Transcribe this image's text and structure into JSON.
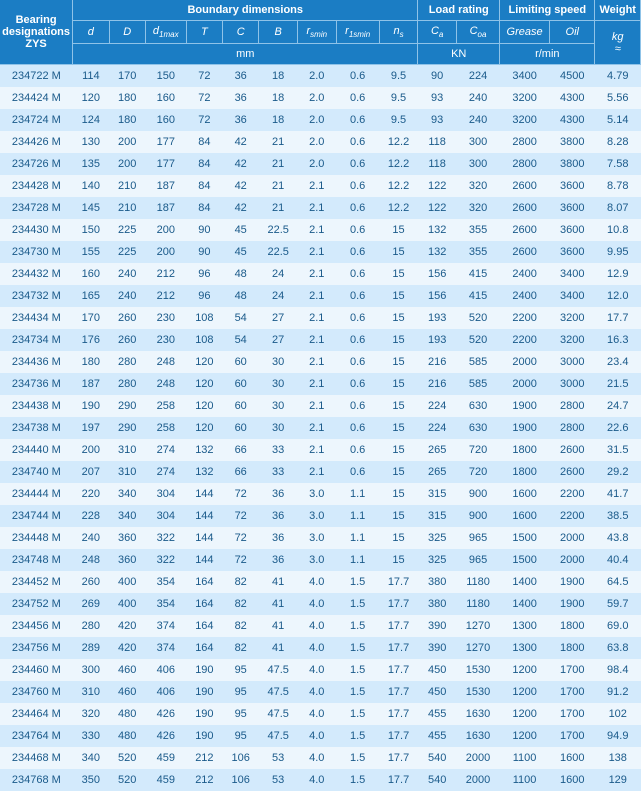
{
  "headers": {
    "group_bearing": "Bearing designations ZYS",
    "group_boundary": "Boundary dimensions",
    "group_load": "Load rating",
    "group_limit": "Limiting speed",
    "group_weight": "Weight",
    "d": "d",
    "D": "D",
    "d1max": "d₁max",
    "T": "T",
    "C": "C",
    "B": "B",
    "rsmin": "rsmin",
    "r1smin": "r1smin",
    "ns": "ns",
    "Ca": "Ca",
    "Coa": "Coa",
    "grease": "Grease",
    "oil": "Oil",
    "kg": "kg ≈",
    "mm": "mm",
    "KN": "KN",
    "rmin": "r/min"
  },
  "rows": [
    {
      "desig": "234722 M",
      "d": "114",
      "D": "170",
      "d1": "150",
      "T": "72",
      "C": "36",
      "B": "18",
      "rs": "2.0",
      "r1": "0.6",
      "ns": "9.5",
      "ca": "90",
      "coa": "224",
      "gr": "3400",
      "oil": "4500",
      "wt": "4.79"
    },
    {
      "desig": "234424 M",
      "d": "120",
      "D": "180",
      "d1": "160",
      "T": "72",
      "C": "36",
      "B": "18",
      "rs": "2.0",
      "r1": "0.6",
      "ns": "9.5",
      "ca": "93",
      "coa": "240",
      "gr": "3200",
      "oil": "4300",
      "wt": "5.56"
    },
    {
      "desig": "234724 M",
      "d": "124",
      "D": "180",
      "d1": "160",
      "T": "72",
      "C": "36",
      "B": "18",
      "rs": "2.0",
      "r1": "0.6",
      "ns": "9.5",
      "ca": "93",
      "coa": "240",
      "gr": "3200",
      "oil": "4300",
      "wt": "5.14"
    },
    {
      "desig": "234426 M",
      "d": "130",
      "D": "200",
      "d1": "177",
      "T": "84",
      "C": "42",
      "B": "21",
      "rs": "2.0",
      "r1": "0.6",
      "ns": "12.2",
      "ca": "118",
      "coa": "300",
      "gr": "2800",
      "oil": "3800",
      "wt": "8.28"
    },
    {
      "desig": "234726 M",
      "d": "135",
      "D": "200",
      "d1": "177",
      "T": "84",
      "C": "42",
      "B": "21",
      "rs": "2.0",
      "r1": "0.6",
      "ns": "12.2",
      "ca": "118",
      "coa": "300",
      "gr": "2800",
      "oil": "3800",
      "wt": "7.58"
    },
    {
      "desig": "234428 M",
      "d": "140",
      "D": "210",
      "d1": "187",
      "T": "84",
      "C": "42",
      "B": "21",
      "rs": "2.1",
      "r1": "0.6",
      "ns": "12.2",
      "ca": "122",
      "coa": "320",
      "gr": "2600",
      "oil": "3600",
      "wt": "8.78"
    },
    {
      "desig": "234728 M",
      "d": "145",
      "D": "210",
      "d1": "187",
      "T": "84",
      "C": "42",
      "B": "21",
      "rs": "2.1",
      "r1": "0.6",
      "ns": "12.2",
      "ca": "122",
      "coa": "320",
      "gr": "2600",
      "oil": "3600",
      "wt": "8.07"
    },
    {
      "desig": "234430 M",
      "d": "150",
      "D": "225",
      "d1": "200",
      "T": "90",
      "C": "45",
      "B": "22.5",
      "rs": "2.1",
      "r1": "0.6",
      "ns": "15",
      "ca": "132",
      "coa": "355",
      "gr": "2600",
      "oil": "3600",
      "wt": "10.8"
    },
    {
      "desig": "234730 M",
      "d": "155",
      "D": "225",
      "d1": "200",
      "T": "90",
      "C": "45",
      "B": "22.5",
      "rs": "2.1",
      "r1": "0.6",
      "ns": "15",
      "ca": "132",
      "coa": "355",
      "gr": "2600",
      "oil": "3600",
      "wt": "9.95"
    },
    {
      "desig": "234432 M",
      "d": "160",
      "D": "240",
      "d1": "212",
      "T": "96",
      "C": "48",
      "B": "24",
      "rs": "2.1",
      "r1": "0.6",
      "ns": "15",
      "ca": "156",
      "coa": "415",
      "gr": "2400",
      "oil": "3400",
      "wt": "12.9"
    },
    {
      "desig": "234732 M",
      "d": "165",
      "D": "240",
      "d1": "212",
      "T": "96",
      "C": "48",
      "B": "24",
      "rs": "2.1",
      "r1": "0.6",
      "ns": "15",
      "ca": "156",
      "coa": "415",
      "gr": "2400",
      "oil": "3400",
      "wt": "12.0"
    },
    {
      "desig": "234434 M",
      "d": "170",
      "D": "260",
      "d1": "230",
      "T": "108",
      "C": "54",
      "B": "27",
      "rs": "2.1",
      "r1": "0.6",
      "ns": "15",
      "ca": "193",
      "coa": "520",
      "gr": "2200",
      "oil": "3200",
      "wt": "17.7"
    },
    {
      "desig": "234734 M",
      "d": "176",
      "D": "260",
      "d1": "230",
      "T": "108",
      "C": "54",
      "B": "27",
      "rs": "2.1",
      "r1": "0.6",
      "ns": "15",
      "ca": "193",
      "coa": "520",
      "gr": "2200",
      "oil": "3200",
      "wt": "16.3"
    },
    {
      "desig": "234436 M",
      "d": "180",
      "D": "280",
      "d1": "248",
      "T": "120",
      "C": "60",
      "B": "30",
      "rs": "2.1",
      "r1": "0.6",
      "ns": "15",
      "ca": "216",
      "coa": "585",
      "gr": "2000",
      "oil": "3000",
      "wt": "23.4"
    },
    {
      "desig": "234736 M",
      "d": "187",
      "D": "280",
      "d1": "248",
      "T": "120",
      "C": "60",
      "B": "30",
      "rs": "2.1",
      "r1": "0.6",
      "ns": "15",
      "ca": "216",
      "coa": "585",
      "gr": "2000",
      "oil": "3000",
      "wt": "21.5"
    },
    {
      "desig": "234438 M",
      "d": "190",
      "D": "290",
      "d1": "258",
      "T": "120",
      "C": "60",
      "B": "30",
      "rs": "2.1",
      "r1": "0.6",
      "ns": "15",
      "ca": "224",
      "coa": "630",
      "gr": "1900",
      "oil": "2800",
      "wt": "24.7"
    },
    {
      "desig": "234738 M",
      "d": "197",
      "D": "290",
      "d1": "258",
      "T": "120",
      "C": "60",
      "B": "30",
      "rs": "2.1",
      "r1": "0.6",
      "ns": "15",
      "ca": "224",
      "coa": "630",
      "gr": "1900",
      "oil": "2800",
      "wt": "22.6"
    },
    {
      "desig": "234440 M",
      "d": "200",
      "D": "310",
      "d1": "274",
      "T": "132",
      "C": "66",
      "B": "33",
      "rs": "2.1",
      "r1": "0.6",
      "ns": "15",
      "ca": "265",
      "coa": "720",
      "gr": "1800",
      "oil": "2600",
      "wt": "31.5"
    },
    {
      "desig": "234740 M",
      "d": "207",
      "D": "310",
      "d1": "274",
      "T": "132",
      "C": "66",
      "B": "33",
      "rs": "2.1",
      "r1": "0.6",
      "ns": "15",
      "ca": "265",
      "coa": "720",
      "gr": "1800",
      "oil": "2600",
      "wt": "29.2"
    },
    {
      "desig": "234444 M",
      "d": "220",
      "D": "340",
      "d1": "304",
      "T": "144",
      "C": "72",
      "B": "36",
      "rs": "3.0",
      "r1": "1.1",
      "ns": "15",
      "ca": "315",
      "coa": "900",
      "gr": "1600",
      "oil": "2200",
      "wt": "41.7"
    },
    {
      "desig": "234744 M",
      "d": "228",
      "D": "340",
      "d1": "304",
      "T": "144",
      "C": "72",
      "B": "36",
      "rs": "3.0",
      "r1": "1.1",
      "ns": "15",
      "ca": "315",
      "coa": "900",
      "gr": "1600",
      "oil": "2200",
      "wt": "38.5"
    },
    {
      "desig": "234448 M",
      "d": "240",
      "D": "360",
      "d1": "322",
      "T": "144",
      "C": "72",
      "B": "36",
      "rs": "3.0",
      "r1": "1.1",
      "ns": "15",
      "ca": "325",
      "coa": "965",
      "gr": "1500",
      "oil": "2000",
      "wt": "43.8"
    },
    {
      "desig": "234748 M",
      "d": "248",
      "D": "360",
      "d1": "322",
      "T": "144",
      "C": "72",
      "B": "36",
      "rs": "3.0",
      "r1": "1.1",
      "ns": "15",
      "ca": "325",
      "coa": "965",
      "gr": "1500",
      "oil": "2000",
      "wt": "40.4"
    },
    {
      "desig": "234452 M",
      "d": "260",
      "D": "400",
      "d1": "354",
      "T": "164",
      "C": "82",
      "B": "41",
      "rs": "4.0",
      "r1": "1.5",
      "ns": "17.7",
      "ca": "380",
      "coa": "1180",
      "gr": "1400",
      "oil": "1900",
      "wt": "64.5"
    },
    {
      "desig": "234752 M",
      "d": "269",
      "D": "400",
      "d1": "354",
      "T": "164",
      "C": "82",
      "B": "41",
      "rs": "4.0",
      "r1": "1.5",
      "ns": "17.7",
      "ca": "380",
      "coa": "1180",
      "gr": "1400",
      "oil": "1900",
      "wt": "59.7"
    },
    {
      "desig": "234456 M",
      "d": "280",
      "D": "420",
      "d1": "374",
      "T": "164",
      "C": "82",
      "B": "41",
      "rs": "4.0",
      "r1": "1.5",
      "ns": "17.7",
      "ca": "390",
      "coa": "1270",
      "gr": "1300",
      "oil": "1800",
      "wt": "69.0"
    },
    {
      "desig": "234756 M",
      "d": "289",
      "D": "420",
      "d1": "374",
      "T": "164",
      "C": "82",
      "B": "41",
      "rs": "4.0",
      "r1": "1.5",
      "ns": "17.7",
      "ca": "390",
      "coa": "1270",
      "gr": "1300",
      "oil": "1800",
      "wt": "63.8"
    },
    {
      "desig": "234460 M",
      "d": "300",
      "D": "460",
      "d1": "406",
      "T": "190",
      "C": "95",
      "B": "47.5",
      "rs": "4.0",
      "r1": "1.5",
      "ns": "17.7",
      "ca": "450",
      "coa": "1530",
      "gr": "1200",
      "oil": "1700",
      "wt": "98.4"
    },
    {
      "desig": "234760 M",
      "d": "310",
      "D": "460",
      "d1": "406",
      "T": "190",
      "C": "95",
      "B": "47.5",
      "rs": "4.0",
      "r1": "1.5",
      "ns": "17.7",
      "ca": "450",
      "coa": "1530",
      "gr": "1200",
      "oil": "1700",
      "wt": "91.2"
    },
    {
      "desig": "234464 M",
      "d": "320",
      "D": "480",
      "d1": "426",
      "T": "190",
      "C": "95",
      "B": "47.5",
      "rs": "4.0",
      "r1": "1.5",
      "ns": "17.7",
      "ca": "455",
      "coa": "1630",
      "gr": "1200",
      "oil": "1700",
      "wt": "102"
    },
    {
      "desig": "234764 M",
      "d": "330",
      "D": "480",
      "d1": "426",
      "T": "190",
      "C": "95",
      "B": "47.5",
      "rs": "4.0",
      "r1": "1.5",
      "ns": "17.7",
      "ca": "455",
      "coa": "1630",
      "gr": "1200",
      "oil": "1700",
      "wt": "94.9"
    },
    {
      "desig": "234468 M",
      "d": "340",
      "D": "520",
      "d1": "459",
      "T": "212",
      "C": "106",
      "B": "53",
      "rs": "4.0",
      "r1": "1.5",
      "ns": "17.7",
      "ca": "540",
      "coa": "2000",
      "gr": "1100",
      "oil": "1600",
      "wt": "138"
    },
    {
      "desig": "234768 M",
      "d": "350",
      "D": "520",
      "d1": "459",
      "T": "212",
      "C": "106",
      "B": "53",
      "rs": "4.0",
      "r1": "1.5",
      "ns": "17.7",
      "ca": "540",
      "coa": "2000",
      "gr": "1100",
      "oil": "1600",
      "wt": "129"
    }
  ]
}
